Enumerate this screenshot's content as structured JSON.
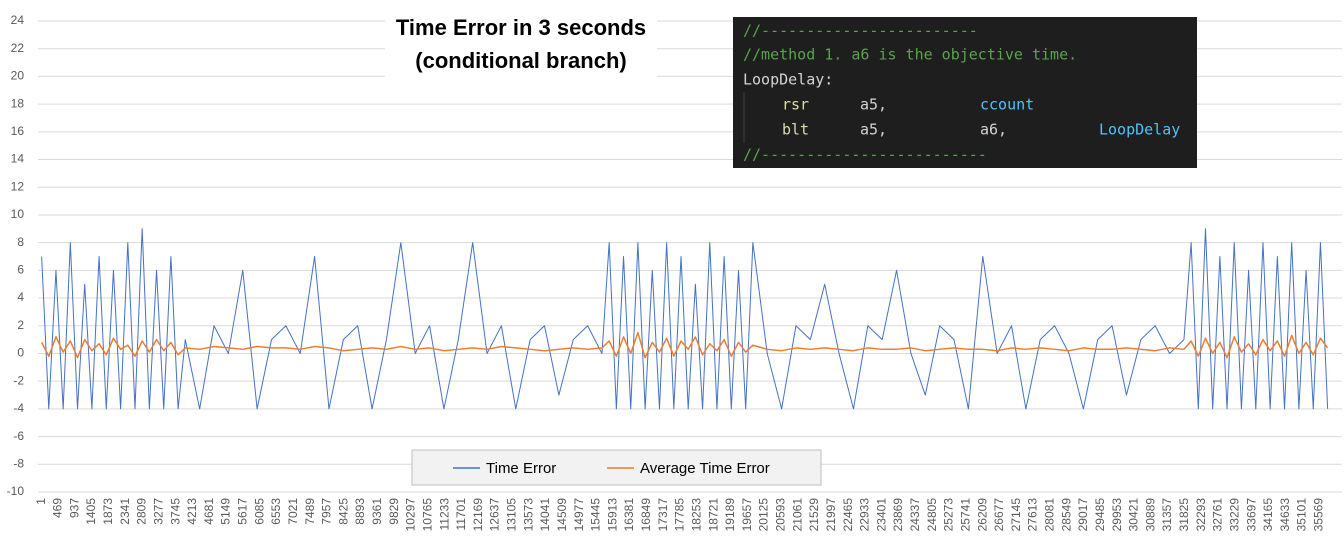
{
  "chart_data": {
    "type": "line",
    "title_lines": [
      "Time Error in 3 seconds",
      "(conditional branch)"
    ],
    "x": [
      1,
      200,
      400,
      600,
      800,
      1000,
      1200,
      1400,
      1600,
      1800,
      2000,
      2200,
      2400,
      2600,
      2800,
      3000,
      3200,
      3400,
      3600,
      3800,
      4000,
      4400,
      4800,
      5200,
      5600,
      6000,
      6400,
      6800,
      7200,
      7600,
      8000,
      8400,
      8800,
      9200,
      9600,
      10000,
      10400,
      10800,
      11200,
      11600,
      12000,
      12400,
      12800,
      13200,
      13600,
      14000,
      14400,
      14800,
      15200,
      15600,
      15800,
      16000,
      16200,
      16400,
      16600,
      16800,
      17000,
      17200,
      17400,
      17600,
      17800,
      18000,
      18200,
      18400,
      18600,
      18800,
      19000,
      19200,
      19400,
      19600,
      19800,
      20200,
      20600,
      21000,
      21400,
      21800,
      22200,
      22600,
      23000,
      23400,
      23800,
      24200,
      24600,
      25000,
      25400,
      25800,
      26200,
      26600,
      27000,
      27400,
      27800,
      28200,
      28600,
      29000,
      29400,
      29800,
      30200,
      30600,
      31000,
      31400,
      31800,
      32000,
      32200,
      32400,
      32600,
      32800,
      33000,
      33200,
      33400,
      33600,
      33800,
      34000,
      34200,
      34400,
      34600,
      34800,
      35000,
      35200,
      35400,
      35600,
      35800
    ],
    "series": [
      {
        "name": "Time Error",
        "color": "#4472c4",
        "values": [
          7,
          -4,
          6,
          -4,
          8,
          -4,
          5,
          -4,
          7,
          -4,
          6,
          -4,
          8,
          -4,
          9,
          -4,
          6,
          -4,
          7,
          -4,
          1,
          -4,
          2,
          0,
          6,
          -4,
          1,
          2,
          0,
          7,
          -4,
          1,
          2,
          -4,
          1,
          8,
          0,
          2,
          -4,
          1,
          8,
          0,
          2,
          -4,
          1,
          2,
          -3,
          1,
          2,
          0,
          8,
          -4,
          7,
          -4,
          8,
          -4,
          6,
          -4,
          8,
          -4,
          7,
          -4,
          5,
          -4,
          8,
          -4,
          7,
          -4,
          6,
          -4,
          8,
          0,
          -4,
          2,
          1,
          5,
          0,
          -4,
          2,
          1,
          6,
          0,
          -3,
          2,
          1,
          -4,
          7,
          0,
          2,
          -4,
          1,
          2,
          0,
          -4,
          1,
          2,
          -3,
          1,
          2,
          0,
          1,
          8,
          -4,
          9,
          -4,
          7,
          -4,
          8,
          -4,
          6,
          -4,
          8,
          -4,
          7,
          -4,
          8,
          -4,
          6,
          -4,
          8,
          -4
        ]
      },
      {
        "name": "Average Time Error",
        "color": "#ed7d31",
        "values": [
          0.8,
          -0.2,
          1.2,
          0.1,
          0.9,
          -0.3,
          1.0,
          0.2,
          0.7,
          -0.1,
          1.1,
          0.3,
          0.6,
          -0.2,
          0.9,
          0.1,
          1.0,
          0.2,
          0.8,
          -0.1,
          0.4,
          0.3,
          0.5,
          0.4,
          0.3,
          0.5,
          0.4,
          0.4,
          0.3,
          0.5,
          0.4,
          0.2,
          0.3,
          0.4,
          0.3,
          0.5,
          0.3,
          0.4,
          0.2,
          0.3,
          0.4,
          0.3,
          0.5,
          0.4,
          0.3,
          0.2,
          0.3,
          0.4,
          0.3,
          0.4,
          0.9,
          -0.2,
          1.2,
          0.0,
          1.5,
          -0.3,
          0.8,
          0.1,
          1.1,
          -0.2,
          0.9,
          0.3,
          1.2,
          -0.1,
          0.7,
          0.2,
          1.0,
          -0.2,
          0.8,
          0.1,
          0.6,
          0.3,
          0.2,
          0.4,
          0.3,
          0.4,
          0.3,
          0.2,
          0.4,
          0.3,
          0.3,
          0.4,
          0.2,
          0.3,
          0.4,
          0.3,
          0.3,
          0.2,
          0.4,
          0.3,
          0.4,
          0.3,
          0.2,
          0.4,
          0.3,
          0.3,
          0.4,
          0.3,
          0.2,
          0.4,
          0.3,
          0.9,
          -0.2,
          1.1,
          0.0,
          0.8,
          -0.3,
          1.2,
          0.1,
          0.7,
          -0.1,
          1.0,
          0.2,
          0.9,
          -0.2,
          1.3,
          0.0,
          0.8,
          -0.1,
          1.1,
          0.4
        ]
      }
    ],
    "xlim": [
      -100,
      36200
    ],
    "xticks": [
      1,
      469,
      937,
      1405,
      1873,
      2341,
      2809,
      3277,
      3745,
      4213,
      4681,
      5149,
      5617,
      6085,
      6553,
      7021,
      7489,
      7957,
      8425,
      8893,
      9361,
      9829,
      10297,
      10765,
      11233,
      11701,
      12169,
      12637,
      13105,
      13573,
      14041,
      14509,
      14977,
      15445,
      15913,
      16381,
      16849,
      17317,
      17785,
      18253,
      18721,
      19189,
      19657,
      20125,
      20593,
      21061,
      21529,
      21997,
      22465,
      22933,
      23401,
      23869,
      24337,
      24805,
      25273,
      25741,
      26209,
      26677,
      27145,
      27613,
      28081,
      28549,
      29017,
      29485,
      29953,
      30421,
      30889,
      31357,
      31825,
      32293,
      32761,
      33229,
      33697,
      34165,
      34633,
      35101,
      35569
    ],
    "ylim": [
      -10,
      24
    ],
    "yticks": [
      -10,
      -8,
      -6,
      -4,
      -2,
      0,
      2,
      4,
      6,
      8,
      10,
      12,
      14,
      16,
      18,
      20,
      22,
      24
    ],
    "grid": true,
    "legend": "bottom",
    "code_annotation": [
      [
        "//------------------------"
      ],
      [
        "//method 1. a6 is the objective time."
      ],
      [
        "LoopDelay:"
      ],
      [
        "rsr",
        "a5,",
        "ccount"
      ],
      [
        "blt",
        "a5,",
        "a6,",
        "LoopDelay"
      ],
      [
        "//-------------------------"
      ]
    ]
  }
}
